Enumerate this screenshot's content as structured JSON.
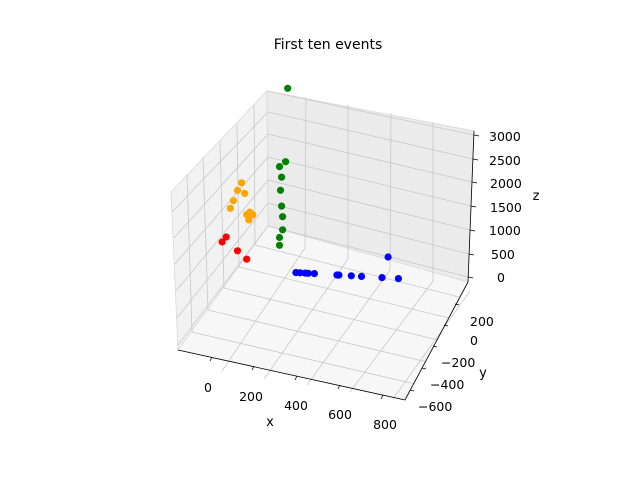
{
  "chart_data": {
    "type": "scatter",
    "title": "First ten events",
    "xlabel": "x",
    "ylabel": "y",
    "zlabel": "z",
    "projection": "3d",
    "grid": true,
    "xlim": [
      -200,
      850
    ],
    "ylim": [
      -650,
      350
    ],
    "zlim": [
      0,
      3100
    ],
    "xticks": [
      0,
      200,
      400,
      600,
      800
    ],
    "yticks": [
      -600,
      -400,
      -200,
      0,
      200
    ],
    "zticks": [
      0,
      500,
      1000,
      1500,
      2000,
      2500,
      3000
    ],
    "xtick_labels": [
      "0",
      "200",
      "400",
      "600",
      "800"
    ],
    "ytick_labels": [
      "−600",
      "−400",
      "−200",
      "0",
      "200"
    ],
    "ztick_labels": [
      "0",
      "500",
      "1000",
      "1500",
      "2000",
      "2500",
      "3000"
    ],
    "series": [
      {
        "color": "#ff0000",
        "points": [
          [
            20,
            0,
            500
          ],
          [
            40,
            0,
            600
          ],
          [
            95,
            0,
            350
          ],
          [
            140,
            0,
            200
          ]
        ]
      },
      {
        "color": "#ffa500",
        "points": [
          [
            60,
            0,
            1150
          ],
          [
            75,
            0,
            1300
          ],
          [
            95,
            0,
            1500
          ],
          [
            115,
            0,
            1650
          ],
          [
            130,
            0,
            1450
          ],
          [
            140,
            0,
            1050
          ],
          [
            150,
            0,
            950
          ],
          [
            155,
            0,
            1100
          ],
          [
            170,
            0,
            1050
          ]
        ]
      },
      {
        "color": "#008000",
        "points": [
          [
            300,
            0,
            500
          ],
          [
            300,
            0,
            650
          ],
          [
            315,
            0,
            800
          ],
          [
            315,
            0,
            1050
          ],
          [
            310,
            0,
            1250
          ],
          [
            305,
            0,
            1550
          ],
          [
            310,
            0,
            1800
          ],
          [
            300,
            0,
            2000
          ],
          [
            330,
            0,
            2100
          ],
          [
            340,
            0,
            3500
          ]
        ]
      },
      {
        "color": "#0000ff",
        "points": [
          [
            380,
            0,
            0
          ],
          [
            400,
            0,
            0
          ],
          [
            425,
            0,
            0
          ],
          [
            440,
            0,
            0
          ],
          [
            470,
            0,
            0
          ],
          [
            580,
            0,
            0
          ],
          [
            590,
            0,
            0
          ],
          [
            650,
            0,
            0
          ],
          [
            700,
            0,
            0
          ],
          [
            800,
            0,
            0
          ],
          [
            830,
            0,
            400
          ],
          [
            880,
            0,
            0
          ]
        ]
      }
    ]
  }
}
